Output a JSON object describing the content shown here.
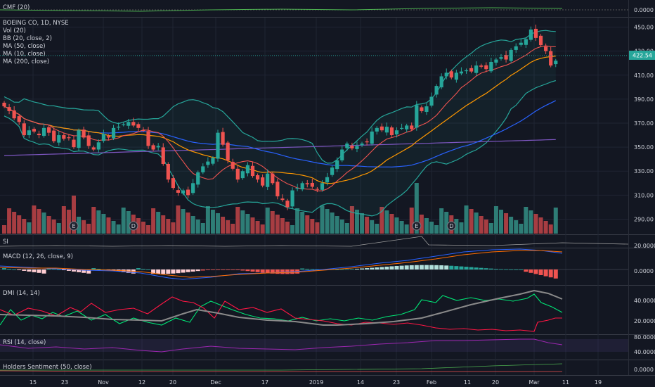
{
  "colors": {
    "background": "#131722",
    "grid": "#1f2433",
    "up": "#26a69a",
    "down": "#ef5350",
    "up_vol": "#2e7d76",
    "down_vol": "#a73d42",
    "bb_band": "#26a69a",
    "ma50": "#2962ff",
    "ma10": "#ef5350",
    "ma20": "#ff9800",
    "ma200": "#7e57c2",
    "text": "#d1d4dc",
    "price_tag": "#26a69a"
  },
  "panes": {
    "cmf": {
      "title": "CMF (20)",
      "tick": "0.0000"
    },
    "main": {
      "legend": [
        "BOEING CO, 1D, NYSE",
        "Vol (20)",
        "BB (20, close, 2)",
        "MA (50, close)",
        "MA (10, close)",
        "MA (200, close)"
      ],
      "price_tag": "422.54",
      "ticks": [
        "450.00",
        "430.00",
        "410.00",
        "390.00",
        "370.00",
        "350.00",
        "330.00",
        "310.00",
        "290.00"
      ]
    },
    "si": {
      "title": "SI",
      "tick": "20.0000"
    },
    "macd": {
      "title": "MACD (12, 26, close, 9)",
      "tick": "0.0000"
    },
    "dmi": {
      "title": "DMI (14, 14)",
      "ticks": [
        "40.0000",
        "20.0000"
      ]
    },
    "rsi": {
      "title": "RSI (14, close)",
      "ticks": [
        "80.0000",
        "40.0000"
      ]
    },
    "holders": {
      "title": "Holders Sentiment (50, close)",
      "tick": "0.0000"
    }
  },
  "x_axis": {
    "labels": [
      "15",
      "23",
      "Nov",
      "12",
      "20",
      "Dec",
      "17",
      "2019",
      "14",
      "23",
      "Feb",
      "11",
      "20",
      "Mar",
      "11",
      "19"
    ]
  },
  "chart_data": {
    "type": "candlestick",
    "title": "BOEING CO, 1D, NYSE",
    "ylim": [
      285,
      455
    ],
    "events": [
      {
        "label": "E",
        "bar": 14
      },
      {
        "label": "D",
        "bar": 26
      },
      {
        "label": "E",
        "bar": 83
      },
      {
        "label": "D",
        "bar": 90
      }
    ],
    "close": [
      384,
      380,
      374,
      371,
      360,
      364,
      363,
      360,
      366,
      362,
      355,
      360,
      357,
      358,
      350,
      364,
      358,
      351,
      348,
      354,
      361,
      358,
      366,
      367,
      369,
      371,
      368,
      366,
      364,
      351,
      348,
      351,
      336,
      323,
      316,
      312,
      314,
      310,
      320,
      329,
      334,
      338,
      341,
      362,
      352,
      339,
      332,
      323,
      330,
      335,
      326,
      323,
      318,
      328,
      320,
      309,
      306,
      300,
      314,
      316,
      320,
      319,
      317,
      315,
      320,
      325,
      333,
      339,
      348,
      353,
      349,
      351,
      353,
      354,
      363,
      366,
      364,
      367,
      360,
      364,
      366,
      368,
      365,
      385,
      380,
      384,
      392,
      401,
      409,
      412,
      408,
      412,
      413,
      414,
      413,
      418,
      417,
      415,
      421,
      423,
      425,
      423,
      431,
      434,
      437,
      440,
      448,
      441,
      435,
      430,
      418,
      422
    ]
  }
}
